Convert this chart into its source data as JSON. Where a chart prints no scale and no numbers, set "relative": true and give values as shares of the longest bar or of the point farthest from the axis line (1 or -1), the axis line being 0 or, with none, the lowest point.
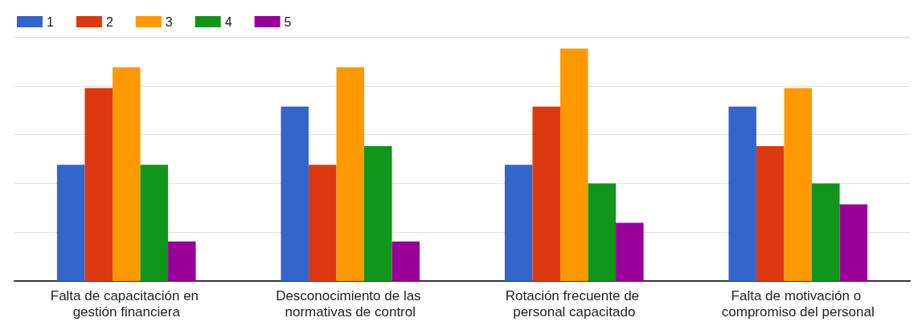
{
  "chart_data": {
    "type": "bar",
    "relative": true,
    "grid": "y",
    "legend": "top left",
    "categories": [
      "Falta de capacitación en gestión financiera",
      "Desconocimiento de las normativas de control",
      "Rotación frecuente de personal capacitado",
      "Falta de motivación o compromiso del personal"
    ],
    "series": [
      {
        "name": "1",
        "color": "#3366cc",
        "values": [
          0.5,
          0.75,
          0.5,
          0.75
        ]
      },
      {
        "name": "2",
        "color": "#dc3912",
        "values": [
          0.83,
          0.5,
          0.75,
          0.58
        ]
      },
      {
        "name": "3",
        "color": "#ff9900",
        "values": [
          0.92,
          0.92,
          1,
          0.83
        ]
      },
      {
        "name": "4",
        "color": "#109618",
        "values": [
          0.5,
          0.58,
          0.42,
          0.42
        ]
      },
      {
        "name": "5",
        "color": "#990099",
        "values": [
          0.17,
          0.17,
          0.25,
          0.33
        ]
      }
    ]
  }
}
